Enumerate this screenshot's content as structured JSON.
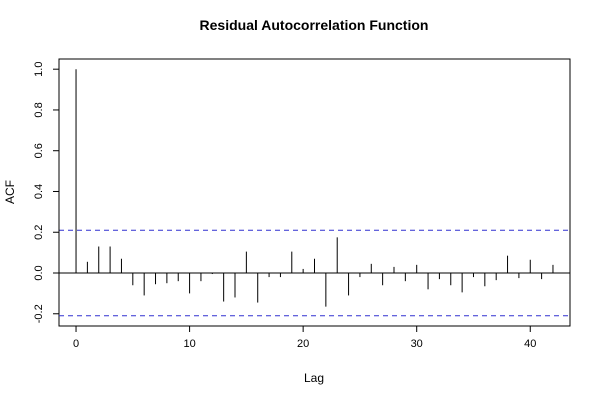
{
  "chart_data": {
    "type": "bar",
    "title": "Residual Autocorrelation Function",
    "xlabel": "Lag",
    "ylabel": "ACF",
    "xlim": [
      -1.5,
      43.5
    ],
    "ylim": [
      -0.26,
      1.05
    ],
    "xticks": [
      0,
      10,
      20,
      30,
      40
    ],
    "yticks": [
      -0.2,
      0.0,
      0.2,
      0.4,
      0.6,
      0.8,
      1.0
    ],
    "ytick_labels": [
      "-0.2",
      "0.0",
      "0.2",
      "0.4",
      "0.6",
      "0.8",
      "1.0"
    ],
    "confidence_bound": 0.21,
    "confidence_color": "#3030d0",
    "lags": [
      0,
      1,
      2,
      3,
      4,
      5,
      6,
      7,
      8,
      9,
      10,
      11,
      12,
      13,
      14,
      15,
      16,
      17,
      18,
      19,
      20,
      21,
      22,
      23,
      24,
      25,
      26,
      27,
      28,
      29,
      30,
      31,
      32,
      33,
      34,
      35,
      36,
      37,
      38,
      39,
      40,
      41,
      42
    ],
    "values": [
      1.0,
      0.055,
      0.13,
      0.13,
      0.07,
      -0.06,
      -0.11,
      -0.055,
      -0.05,
      -0.04,
      -0.1,
      -0.04,
      -0.005,
      -0.14,
      -0.12,
      0.105,
      -0.145,
      -0.02,
      -0.02,
      0.105,
      0.02,
      0.07,
      -0.165,
      0.175,
      -0.11,
      -0.02,
      0.045,
      -0.06,
      0.03,
      -0.04,
      0.04,
      -0.08,
      -0.03,
      -0.06,
      -0.095,
      -0.02,
      -0.065,
      -0.035,
      0.085,
      -0.025,
      0.065,
      -0.03,
      0.04
    ]
  }
}
